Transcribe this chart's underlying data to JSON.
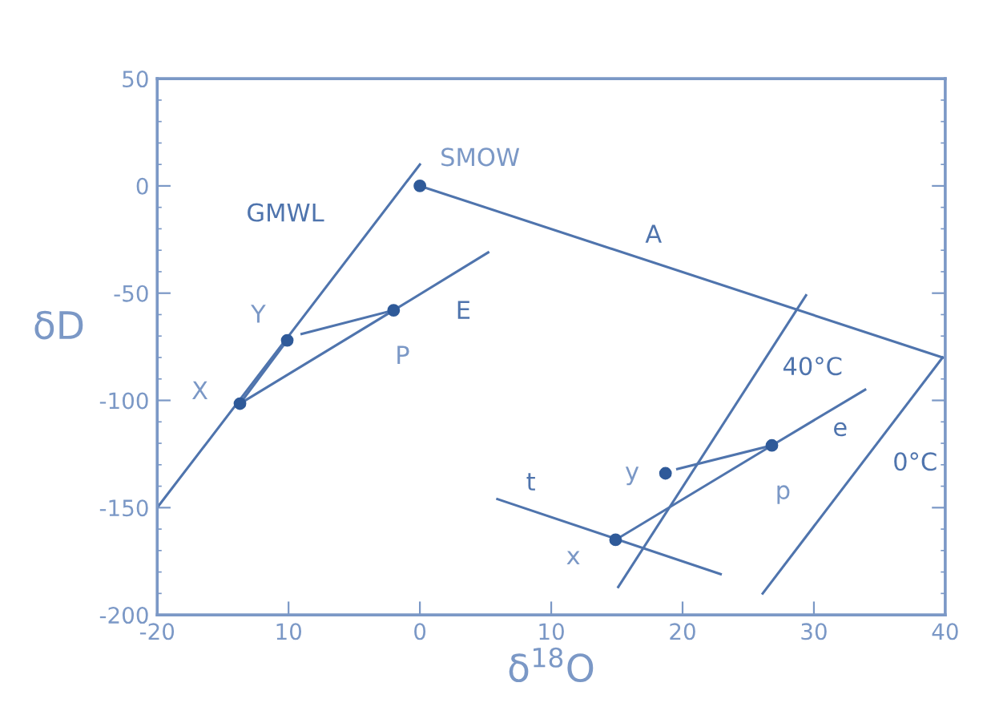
{
  "chart_data": {
    "type": "line",
    "xlabel": "δ$^{18}$O",
    "ylabel": "δD",
    "xlim": [
      -20,
      40
    ],
    "ylim": [
      -200,
      50
    ],
    "xticks": [
      -20,
      {
        "value": -10,
        "label": "10"
      },
      0,
      10,
      20,
      30,
      40
    ],
    "yticks": [
      -200,
      -150,
      -100,
      -50,
      0,
      50
    ],
    "grid": false,
    "legend": false,
    "marker": "none",
    "line_style": "solid",
    "series": [
      {
        "name": "GMWL",
        "color": "#4f74ad",
        "x": [
          -20,
          0
        ],
        "values": [
          -150,
          10
        ]
      },
      {
        "name": "A",
        "color": "#4f74ad",
        "x": [
          0,
          39.8
        ],
        "values": [
          0,
          -80
        ]
      },
      {
        "color": "#4f74ad",
        "x": [
          -13.7,
          -10.1
        ],
        "values": [
          -101.5,
          -72
        ]
      },
      {
        "name": "E",
        "color": "#4f74ad",
        "x": [
          -13.7,
          -2,
          5.2
        ],
        "values": [
          -101.5,
          -58,
          -31
        ]
      },
      {
        "color": "#4f74ad",
        "x": [
          -2,
          -9
        ],
        "values": [
          -58,
          -69
        ]
      },
      {
        "name": "40°C",
        "color": "#4f74ad",
        "x": [
          15.1,
          29.4
        ],
        "values": [
          -187,
          -51
        ]
      },
      {
        "name": "0°C",
        "color": "#4f74ad",
        "x": [
          26.1,
          39.8
        ],
        "values": [
          -190,
          -80
        ]
      },
      {
        "name": "e",
        "color": "#4f74ad",
        "x": [
          14.9,
          26.8,
          33.9
        ],
        "values": [
          -165,
          -121,
          -95
        ]
      },
      {
        "color": "#4f74ad",
        "x": [
          26.8,
          19.6
        ],
        "values": [
          -121,
          -132
        ]
      },
      {
        "name": "t",
        "color": "#4f74ad",
        "x": [
          5.9,
          22.9
        ],
        "values": [
          -146,
          -181
        ]
      },
      {
        "type": "scatter",
        "marker": "circle",
        "color": "#2f5a99",
        "x": [
          -13.7,
          -10.1,
          -2,
          0,
          14.9,
          18.7,
          26.8
        ],
        "values": [
          -101.5,
          -72,
          -58,
          0,
          -165,
          -134,
          -121
        ]
      }
    ],
    "annotations": [
      {
        "text": "SMOW",
        "x": 0,
        "y": 0
      },
      {
        "text": "Y",
        "x": -10.1,
        "y": -72
      },
      {
        "text": "P",
        "x": -2,
        "y": -58
      },
      {
        "text": "X",
        "x": -13.7,
        "y": -101.5
      },
      {
        "text": "y",
        "x": 18.7,
        "y": -134
      },
      {
        "text": "p",
        "x": 26.8,
        "y": -121
      },
      {
        "text": "x",
        "x": 14.9,
        "y": -165
      }
    ]
  }
}
